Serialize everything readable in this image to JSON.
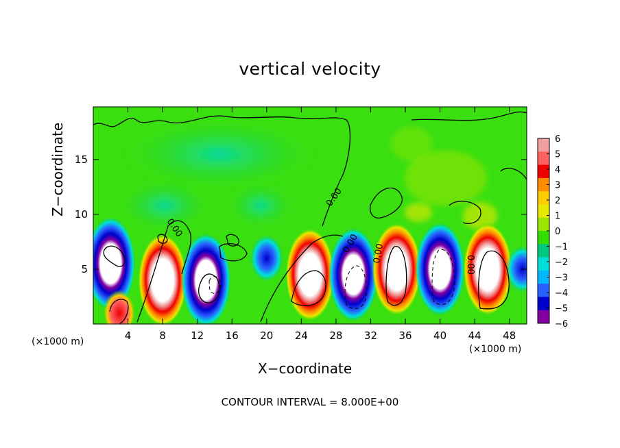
{
  "chart_data": {
    "type": "heatmap",
    "title": "vertical velocity",
    "xlabel": "X−coordinate",
    "ylabel": "Z−coordinate",
    "x_unit": "(×1000 m)",
    "x_ticks": [
      4,
      8,
      12,
      16,
      20,
      24,
      28,
      32,
      36,
      40,
      44,
      48
    ],
    "y_ticks": [
      5,
      10,
      15
    ],
    "xlim": [
      0,
      50
    ],
    "ylim": [
      0,
      19.8
    ],
    "colorbar": {
      "ticks": [
        "6",
        "5",
        "4",
        "3",
        "2",
        "1",
        "0",
        "−1",
        "−2",
        "−3",
        "−4",
        "−5",
        "−6"
      ],
      "range": [
        -6,
        6
      ],
      "colors": [
        "#f0a0a0",
        "#ff6060",
        "#ee0000",
        "#ff8c00",
        "#ffcc00",
        "#e8e800",
        "#9ae600",
        "#33dd00",
        "#00c880",
        "#00e0d8",
        "#00b8ff",
        "#2860ff",
        "#0000cc",
        "#8000a0"
      ]
    },
    "contour_labels": [
      "0.00",
      "0.00",
      "0.00",
      "0.00",
      "0.00"
    ],
    "footer": "CONTOUR INTERVAL = 8.000E+00",
    "cells": [
      {
        "x": 2,
        "z": 5.5,
        "w": -8
      },
      {
        "x": 3,
        "z": 1.0,
        "w": 4
      },
      {
        "x": 8,
        "z": 4.0,
        "w": 8
      },
      {
        "x": 13,
        "z": 4.0,
        "w": -8
      },
      {
        "x": 20,
        "z": 6.0,
        "w": -6
      },
      {
        "x": 25,
        "z": 4.5,
        "w": 10
      },
      {
        "x": 30,
        "z": 4.5,
        "w": -10
      },
      {
        "x": 35,
        "z": 5.0,
        "w": 12
      },
      {
        "x": 40,
        "z": 5.0,
        "w": -12
      },
      {
        "x": 45.5,
        "z": 5.0,
        "w": 12
      },
      {
        "x": 49.5,
        "z": 5.0,
        "w": -6
      }
    ]
  }
}
